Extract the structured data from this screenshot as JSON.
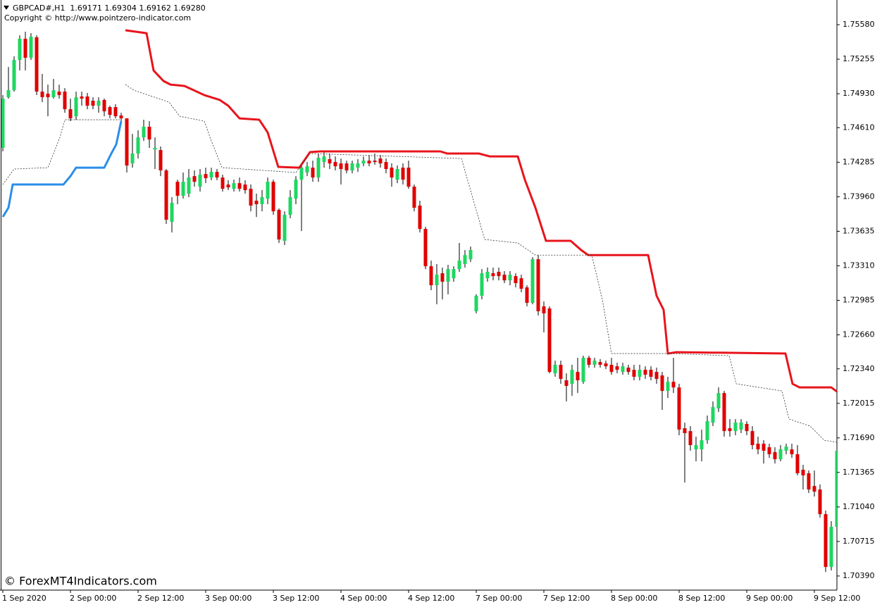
{
  "chart_data": {
    "type": "candlestick",
    "title": "GBPCAD#,H1  1.69171 1.69304 1.69162 1.69280",
    "subtitle": "Copyright © http://www.pointzero-indicator.com",
    "watermark": "© ForexMT4Indicators.com",
    "up_color": "#1ed760",
    "down_color": "#e00000",
    "categories": [
      "1 Sep 2020",
      null,
      null,
      null,
      null,
      null,
      null,
      null,
      null,
      null,
      null,
      null,
      "2 Sep 00:00",
      null,
      null,
      null,
      null,
      null,
      null,
      null,
      null,
      null,
      null,
      null,
      "2 Sep 12:00",
      null,
      null,
      null,
      null,
      null,
      null,
      null,
      null,
      null,
      null,
      null,
      "3 Sep 00:00",
      null,
      null,
      null,
      null,
      null,
      null,
      null,
      null,
      null,
      null,
      null,
      "3 Sep 12:00",
      null,
      null,
      null,
      null,
      null,
      null,
      null,
      null,
      null,
      null,
      null,
      "4 Sep 00:00",
      null,
      null,
      null,
      null,
      null,
      null,
      null,
      null,
      null,
      null,
      null,
      "4 Sep 12:00",
      null,
      null,
      null,
      null,
      null,
      null,
      null,
      null,
      null,
      null,
      null,
      "7 Sep 00:00",
      null,
      null,
      null,
      null,
      null,
      null,
      null,
      null,
      null,
      null,
      null,
      "7 Sep 12:00",
      null,
      null,
      null,
      null,
      null,
      null,
      null,
      null,
      null,
      null,
      null,
      "8 Sep 00:00",
      null,
      null,
      null,
      null,
      null,
      null,
      null,
      null,
      null,
      null,
      null,
      "8 Sep 12:00",
      null,
      null,
      null,
      null,
      null,
      null,
      null,
      null,
      null,
      null,
      null,
      "9 Sep 00:00",
      null,
      null,
      null,
      null,
      null,
      null,
      null,
      null,
      null,
      null,
      null,
      "9 Sep 12:00",
      null,
      null,
      null,
      null
    ],
    "open": [
      1.7442,
      1.74897,
      1.74963,
      1.75248,
      1.75447,
      1.75268,
      1.75461,
      1.7495,
      1.7493,
      1.74897,
      1.7495,
      1.7495,
      1.74784,
      1.74718,
      1.74904,
      1.74904,
      1.74864,
      1.74817,
      1.74871,
      1.74804,
      1.74804,
      1.74725,
      1.74698,
      1.74274,
      1.74367,
      1.74519,
      1.74619,
      1.74406,
      1.744,
      1.74208,
      1.73724,
      1.74101,
      1.73969,
      1.73989,
      1.74154,
      1.74055,
      1.74174,
      1.74141,
      1.74194,
      1.74141,
      1.74075,
      1.74035,
      1.74088,
      1.74075,
      1.74035,
      1.73923,
      1.7389,
      1.73943,
      1.74101,
      1.73836,
      1.73545,
      1.7379,
      1.73943,
      1.74121,
      1.74188,
      1.74234,
      1.74141,
      1.74287,
      1.74314,
      1.74287,
      1.74274,
      1.74274,
      1.74208,
      1.74234,
      1.74274,
      1.743,
      1.743,
      1.7432,
      1.74287,
      1.74234,
      1.74121,
      1.74234,
      1.74234,
      1.74055,
      1.73877,
      1.73657,
      1.73306,
      1.73127,
      1.7324,
      1.7316,
      1.73193,
      1.73279,
      1.73326,
      1.73372,
      1.72882,
      1.73028,
      1.73193,
      1.7324,
      1.73253,
      1.73226,
      1.73173,
      1.73213,
      1.73193,
      1.73107,
      1.72961,
      1.73372,
      1.72928,
      1.72908,
      1.72298,
      1.72378,
      1.72232,
      1.72199,
      1.72311,
      1.72218,
      1.72444,
      1.72378,
      1.72404,
      1.72391,
      1.72378,
      1.72364,
      1.72311,
      1.72351,
      1.72331,
      1.72265,
      1.72331,
      1.72331,
      1.72311,
      1.72278,
      1.72132,
      1.72218,
      1.72165,
      1.71781,
      1.71754,
      1.71582,
      1.71582,
      1.71668,
      1.71834,
      1.71967,
      1.72112,
      1.71781,
      1.71754,
      1.71768,
      1.71821,
      1.71754,
      1.71635,
      1.71635,
      1.71602,
      1.71556,
      1.71489,
      1.71569,
      1.71582,
      1.71536,
      1.7139,
      1.71357,
      1.71237,
      1.71204,
      1.70972,
      1.70475,
      1.70853
    ],
    "high": [
      1.74917,
      1.75182,
      1.75282,
      1.7548,
      1.75514,
      1.755,
      1.7548,
      1.75116,
      1.75016,
      1.75069,
      1.75016,
      1.74983,
      1.74884,
      1.7495,
      1.7495,
      1.74937,
      1.74897,
      1.74897,
      1.74884,
      1.74817,
      1.74831,
      1.74751,
      1.74698,
      1.74552,
      1.74585,
      1.74685,
      1.74672,
      1.74519,
      1.74433,
      1.74221,
      1.73956,
      1.74121,
      1.74188,
      1.74221,
      1.74208,
      1.74221,
      1.74234,
      1.74234,
      1.74221,
      1.74168,
      1.74115,
      1.74121,
      1.74141,
      1.74115,
      1.74075,
      1.73989,
      1.74022,
      1.74141,
      1.74121,
      1.7385,
      1.73823,
      1.74022,
      1.74154,
      1.74274,
      1.74287,
      1.743,
      1.74367,
      1.74387,
      1.74367,
      1.7434,
      1.7432,
      1.743,
      1.743,
      1.74314,
      1.7434,
      1.74354,
      1.74367,
      1.74354,
      1.7432,
      1.74274,
      1.74254,
      1.74274,
      1.743,
      1.74075,
      1.73923,
      1.73677,
      1.73359,
      1.73326,
      1.73293,
      1.73319,
      1.73306,
      1.73525,
      1.73458,
      1.73491,
      1.73041,
      1.73279,
      1.73293,
      1.73293,
      1.73293,
      1.7326,
      1.7326,
      1.7324,
      1.73226,
      1.73127,
      1.73392,
      1.73411,
      1.72974,
      1.72928,
      1.72417,
      1.72417,
      1.72298,
      1.72378,
      1.72444,
      1.72464,
      1.72464,
      1.72444,
      1.72431,
      1.72417,
      1.72444,
      1.72397,
      1.72397,
      1.72378,
      1.72378,
      1.72378,
      1.72364,
      1.72364,
      1.72351,
      1.72311,
      1.72265,
      1.72444,
      1.72199,
      1.71834,
      1.71801,
      1.71701,
      1.71768,
      1.719,
      1.72033,
      1.72165,
      1.72132,
      1.71867,
      1.71867,
      1.71867,
      1.71847,
      1.71801,
      1.71701,
      1.71668,
      1.71635,
      1.71602,
      1.71622,
      1.71635,
      1.71635,
      1.71622,
      1.71436,
      1.71383,
      1.71383,
      1.71251,
      1.71005,
      1.70906,
      1.71701
    ],
    "low": [
      1.74387,
      1.74884,
      1.7495,
      1.75149,
      1.75149,
      1.75248,
      1.74917,
      1.74851,
      1.74718,
      1.74884,
      1.74884,
      1.74751,
      1.74672,
      1.74685,
      1.74817,
      1.74784,
      1.74784,
      1.74751,
      1.74718,
      1.74698,
      1.74698,
      1.74672,
      1.74188,
      1.74234,
      1.7432,
      1.74486,
      1.7442,
      1.74221,
      1.74154,
      1.73704,
      1.73624,
      1.7389,
      1.73943,
      1.73956,
      1.74055,
      1.74009,
      1.74088,
      1.74115,
      1.74115,
      1.74009,
      1.74022,
      1.74009,
      1.74009,
      1.73989,
      1.73823,
      1.7377,
      1.73823,
      1.7389,
      1.7379,
      1.73525,
      1.73505,
      1.73757,
      1.7389,
      1.73637,
      1.74154,
      1.74101,
      1.74101,
      1.74234,
      1.74221,
      1.74208,
      1.74075,
      1.74181,
      1.74181,
      1.74194,
      1.74247,
      1.74247,
      1.74261,
      1.74234,
      1.74181,
      1.74055,
      1.74088,
      1.74075,
      1.74035,
      1.73823,
      1.73624,
      1.73279,
      1.7308,
      1.72948,
      1.72994,
      1.73041,
      1.7316,
      1.73253,
      1.73293,
      1.73346,
      1.72862,
      1.72994,
      1.7316,
      1.73173,
      1.73173,
      1.73147,
      1.73127,
      1.73107,
      1.73061,
      1.72928,
      1.72948,
      1.72842,
      1.72683,
      1.72298,
      1.72265,
      1.72199,
      1.72033,
      1.72086,
      1.72112,
      1.72199,
      1.72351,
      1.72351,
      1.72351,
      1.72338,
      1.72285,
      1.72298,
      1.72285,
      1.72285,
      1.72232,
      1.72232,
      1.72245,
      1.72232,
      1.72199,
      1.71954,
      1.72066,
      1.72112,
      1.71715,
      1.7127,
      1.71569,
      1.71469,
      1.71469,
      1.71635,
      1.71801,
      1.71933,
      1.71701,
      1.71701,
      1.71715,
      1.71735,
      1.71715,
      1.71582,
      1.71536,
      1.71449,
      1.71502,
      1.71449,
      1.71469,
      1.71536,
      1.71502,
      1.71337,
      1.71204,
      1.71171,
      1.71138,
      1.70939,
      1.70428,
      1.70442,
      1.70826
    ],
    "close": [
      1.74884,
      1.74963,
      1.75248,
      1.75447,
      1.75268,
      1.75467,
      1.7495,
      1.74897,
      1.74897,
      1.74963,
      1.74917,
      1.74784,
      1.74698,
      1.74897,
      1.74884,
      1.74817,
      1.74817,
      1.74864,
      1.74764,
      1.74731,
      1.74718,
      1.74698,
      1.74254,
      1.74367,
      1.74519,
      1.74619,
      1.74499,
      1.7442,
      1.74208,
      1.73744,
      1.73903,
      1.73969,
      1.74101,
      1.74141,
      1.74101,
      1.74168,
      1.74135,
      1.74194,
      1.74141,
      1.74035,
      1.74048,
      1.74088,
      1.74035,
      1.74022,
      1.73877,
      1.7389,
      1.73956,
      1.74101,
      1.73823,
      1.73558,
      1.7379,
      1.73956,
      1.74121,
      1.74234,
      1.74247,
      1.74141,
      1.74327,
      1.7434,
      1.74274,
      1.74247,
      1.74221,
      1.74208,
      1.74274,
      1.74274,
      1.743,
      1.74274,
      1.74287,
      1.74274,
      1.74221,
      1.74141,
      1.74221,
      1.74121,
      1.74055,
      1.73857,
      1.73657,
      1.73306,
      1.73127,
      1.73226,
      1.7316,
      1.73279,
      1.73279,
      1.73359,
      1.73411,
      1.73458,
      1.73028,
      1.7324,
      1.73253,
      1.73213,
      1.73213,
      1.73173,
      1.73226,
      1.73147,
      1.73094,
      1.72961,
      1.73372,
      1.72882,
      1.72862,
      1.72311,
      1.72378,
      1.72245,
      1.72179,
      1.72331,
      1.72232,
      1.72444,
      1.72378,
      1.72417,
      1.72378,
      1.72364,
      1.72311,
      1.72331,
      1.72364,
      1.72311,
      1.72265,
      1.72331,
      1.72285,
      1.72265,
      1.72245,
      1.72132,
      1.72218,
      1.72165,
      1.71768,
      1.71735,
      1.71622,
      1.71622,
      1.71668,
      1.71847,
      1.7198,
      1.72112,
      1.71754,
      1.71754,
      1.71834,
      1.71834,
      1.71754,
      1.71622,
      1.71582,
      1.71569,
      1.71536,
      1.71489,
      1.71582,
      1.71608,
      1.71536,
      1.71357,
      1.71337,
      1.71204,
      1.71184,
      1.70972,
      1.70475,
      1.70853,
      1.71569
    ],
    "lines": [
      {
        "color": "#e8141c",
        "width": 3,
        "style": "solid",
        "x": [
          21.75,
          25.5,
          26.75,
          28.5,
          29.75,
          32.25,
          35.75,
          38.5,
          40,
          42,
          45.5,
          47,
          48.875,
          52.625,
          54.5,
          56.375,
          77.625,
          78.875,
          84.5,
          86.375,
          91.375,
          92.625,
          94.5,
          96.375,
          100.75,
          102.625,
          103.875,
          114.5,
          116,
          117.25,
          118,
          119.5,
          138.875,
          140.125,
          141.375,
          147,
          148
        ],
        "values": [
          1.75527,
          1.755,
          1.75149,
          1.7505,
          1.75016,
          1.75003,
          1.74917,
          1.74871,
          1.74817,
          1.74698,
          1.74685,
          1.74565,
          1.74241,
          1.74234,
          1.7438,
          1.74387,
          1.74387,
          1.74367,
          1.74367,
          1.7434,
          1.7434,
          1.74121,
          1.73857,
          1.73545,
          1.73545,
          1.73458,
          1.73411,
          1.73411,
          1.73028,
          1.72895,
          1.72484,
          1.72497,
          1.72484,
          1.72199,
          1.72165,
          1.72165,
          1.72126
        ]
      },
      {
        "color": "#2a8ee8",
        "width": 3,
        "style": "solid",
        "x": [
          0,
          1,
          1.75,
          10.75,
          12,
          13,
          18,
          19.25,
          20.125,
          21
        ],
        "values": [
          1.7377,
          1.73857,
          1.74075,
          1.74075,
          1.74154,
          1.74234,
          1.74234,
          1.74367,
          1.74453,
          1.74672
        ]
      },
      {
        "color": "#333333",
        "width": 0.8,
        "style": "dashed",
        "x": [
          0,
          2,
          8,
          10.125,
          11,
          20.75,
          21.25,
          21.75,
          23.25,
          29.5,
          31.375,
          35.75,
          37,
          38.875,
          52,
          54.5,
          81.375,
          82.625,
          85.5,
          91.375,
          94.5,
          104.5,
          106.375,
          108,
          118.25,
          128.875,
          130.125,
          138.25,
          139.5,
          143.25,
          145.75,
          148
        ],
        "values": [
          1.74075,
          1.74221,
          1.74234,
          1.74519,
          1.74685,
          1.74685,
          null,
          1.75016,
          1.74963,
          1.74851,
          1.74718,
          1.74672,
          1.74486,
          1.74234,
          1.74188,
          1.74367,
          1.7432,
          1.74088,
          1.73558,
          1.73525,
          1.73411,
          1.73411,
          1.72994,
          1.72484,
          1.72484,
          1.72464,
          1.72199,
          1.72132,
          1.71867,
          1.71801,
          1.71668,
          1.71648
        ]
      }
    ],
    "xlim": [
      -0.25,
      148
    ],
    "ylim": [
      1.70257,
      1.75799
    ],
    "yticks": [
      {
        "value": 1.7558,
        "label": "1.75580"
      },
      {
        "value": 1.75255,
        "label": "1.75255"
      },
      {
        "value": 1.7493,
        "label": "1.74930"
      },
      {
        "value": 1.7461,
        "label": "1.74610"
      },
      {
        "value": 1.74285,
        "label": "1.74285"
      },
      {
        "value": 1.7396,
        "label": "1.73960"
      },
      {
        "value": 1.73635,
        "label": "1.73635"
      },
      {
        "value": 1.7331,
        "label": "1.73310"
      },
      {
        "value": 1.72985,
        "label": "1.72985"
      },
      {
        "value": 1.7266,
        "label": "1.72660"
      },
      {
        "value": 1.7234,
        "label": "1.72340"
      },
      {
        "value": 1.72015,
        "label": "1.72015"
      },
      {
        "value": 1.7169,
        "label": "1.71690"
      },
      {
        "value": 1.71365,
        "label": "1.71365"
      },
      {
        "value": 1.7104,
        "label": "1.71040"
      },
      {
        "value": 1.70715,
        "label": "1.70715"
      },
      {
        "value": 1.7039,
        "label": "1.70390"
      }
    ]
  }
}
